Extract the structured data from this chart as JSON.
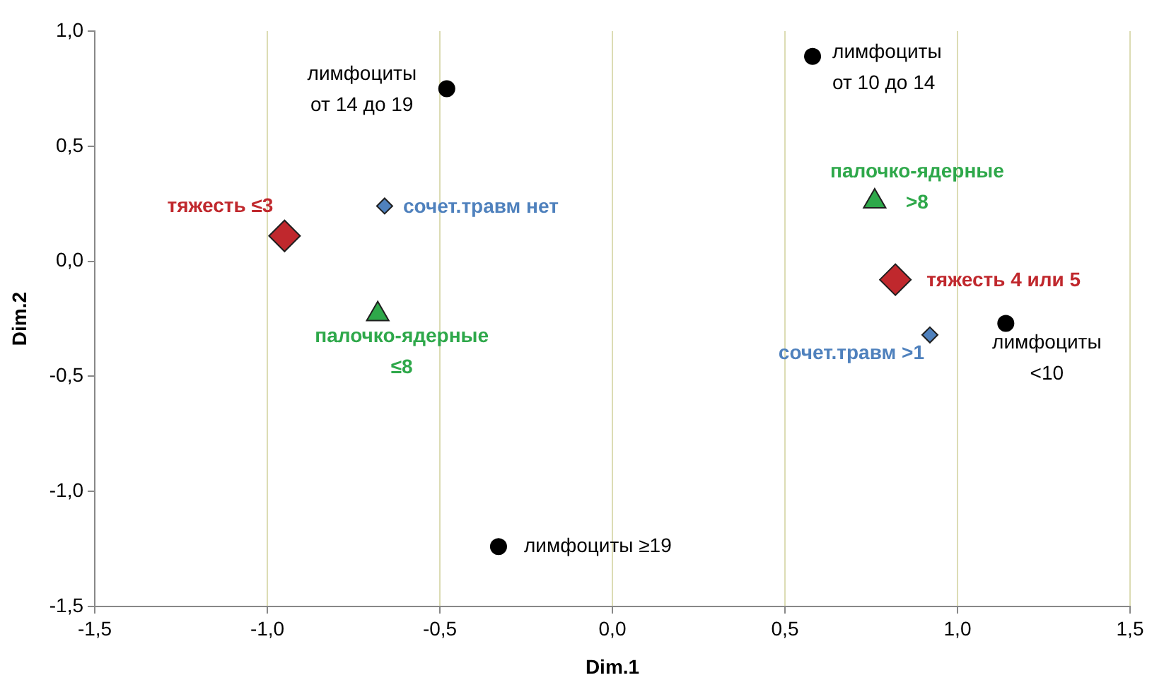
{
  "chart_data": {
    "type": "scatter",
    "xlabel": "Dim.1",
    "ylabel": "Dim.2",
    "xlim": [
      -1.5,
      1.5
    ],
    "ylim": [
      -1.5,
      1.0
    ],
    "xticks": [
      {
        "value": -1.5,
        "label": "-1,5"
      },
      {
        "value": -1.0,
        "label": "-1,0"
      },
      {
        "value": -0.5,
        "label": "-0,5"
      },
      {
        "value": 0,
        "label": "0,0"
      },
      {
        "value": 0.5,
        "label": "0,5"
      },
      {
        "value": 1.0,
        "label": "1,0"
      },
      {
        "value": 1.5,
        "label": "1,5"
      }
    ],
    "yticks": [
      {
        "value": -1.5,
        "label": "-1,5"
      },
      {
        "value": -1.0,
        "label": "-1,0"
      },
      {
        "value": -0.5,
        "label": "-0,5"
      },
      {
        "value": 0,
        "label": "0,0"
      },
      {
        "value": 0.5,
        "label": "0,5"
      },
      {
        "value": 1.0,
        "label": "1,0"
      }
    ],
    "grid": "x",
    "legend": false,
    "series": [
      {
        "color": "#000000",
        "marker": "circle",
        "x": [
          -0.48,
          0.58,
          1.14,
          -0.33
        ],
        "values": [
          0.75,
          0.89,
          -0.27,
          -1.24
        ]
      },
      {
        "color": "#c0282d",
        "marker": "diamond",
        "x": [
          -0.95,
          0.82
        ],
        "values": [
          0.11,
          -0.08
        ]
      },
      {
        "color": "#4f81bd",
        "marker": "diamond",
        "x": [
          -0.66,
          0.92
        ],
        "values": [
          0.24,
          -0.32
        ]
      },
      {
        "color": "#2ea84a",
        "marker": "triangle",
        "x": [
          -0.68,
          0.76
        ],
        "values": [
          -0.23,
          0.26
        ]
      }
    ],
    "annotations": [
      {
        "text": "лимфоциты\nот 14 до 19",
        "x": -0.48,
        "y": 0.75
      },
      {
        "text": "лимфоциты\nот 10 до 14",
        "x": 0.58,
        "y": 0.89
      },
      {
        "text": "лимфоциты\n<10",
        "x": 1.14,
        "y": -0.27
      },
      {
        "text": "лимфоциты ≥19",
        "x": -0.33,
        "y": -1.24
      },
      {
        "text": "тяжесть ≤3",
        "x": -0.95,
        "y": 0.11
      },
      {
        "text": "тяжесть 4 или 5",
        "x": 0.82,
        "y": -0.08
      },
      {
        "text": "сочет.травм нет",
        "x": -0.66,
        "y": 0.24
      },
      {
        "text": "сочет.травм >1",
        "x": 0.92,
        "y": -0.32
      },
      {
        "text": "палочко-ядерные\n≤8",
        "x": -0.68,
        "y": -0.23
      },
      {
        "text": "палочко-ядерные\n>8",
        "x": 0.76,
        "y": 0.26
      }
    ]
  }
}
